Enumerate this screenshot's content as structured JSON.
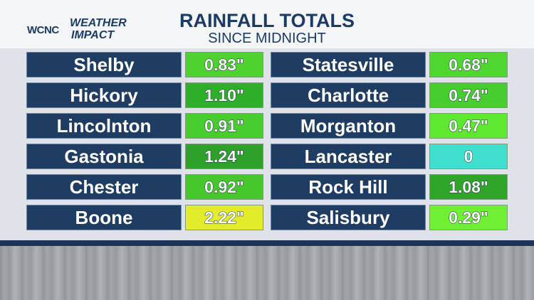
{
  "header": {
    "logo": {
      "station": "WCNC",
      "line1": "WEATHER",
      "line2": "IMPACT"
    },
    "title": "RAINFALL TOTALS",
    "subtitle": "SINCE MIDNIGHT"
  },
  "table": {
    "columns": [
      [
        {
          "name": "Shelby",
          "value": "0.83\"",
          "color": "#4fd12f"
        },
        {
          "name": "Hickory",
          "value": "1.10\"",
          "color": "#2fae2a"
        },
        {
          "name": "Lincolnton",
          "value": "0.91\"",
          "color": "#48cc2e"
        },
        {
          "name": "Gastonia",
          "value": "1.24\"",
          "color": "#2ea12a"
        },
        {
          "name": "Chester",
          "value": "0.92\"",
          "color": "#46c82d"
        },
        {
          "name": "Boone",
          "value": "2.22\"",
          "color": "#e3ec2a"
        }
      ],
      [
        {
          "name": "Statesville",
          "value": "0.68\"",
          "color": "#4fd62f"
        },
        {
          "name": "Charlotte",
          "value": "0.74\"",
          "color": "#48cd2e"
        },
        {
          "name": "Morganton",
          "value": "0.47\"",
          "color": "#5ee830"
        },
        {
          "name": "Lancaster",
          "value": "0",
          "color": "#3fe0d0"
        },
        {
          "name": "Rock Hill",
          "value": "1.08\"",
          "color": "#2fa52a"
        },
        {
          "name": "Salisbury",
          "value": "0.29\"",
          "color": "#6ff032"
        }
      ]
    ]
  }
}
